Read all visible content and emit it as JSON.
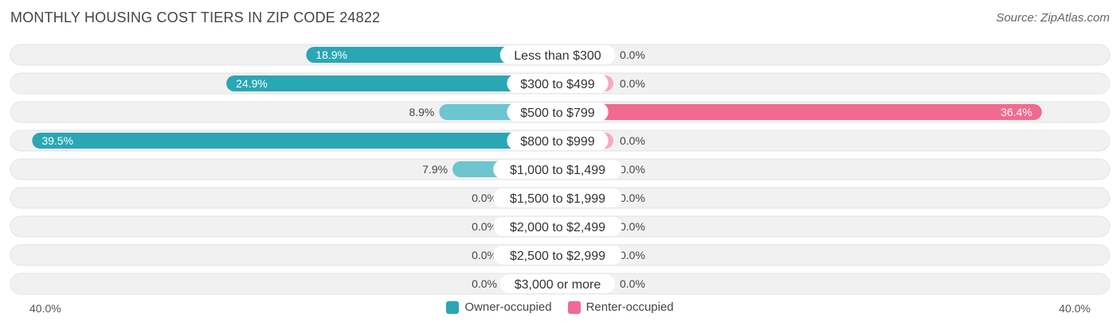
{
  "header": {
    "title": "MONTHLY HOUSING COST TIERS IN ZIP CODE 24822",
    "source": "Source: ZipAtlas.com"
  },
  "axis": {
    "left_label": "40.0%",
    "right_label": "40.0%"
  },
  "legend": {
    "owner_label": "Owner-occupied",
    "renter_label": "Renter-occupied"
  },
  "colors": {
    "owner": "#6cc5cf",
    "owner_strong": "#2aa6b4",
    "renter": "#f6a9c1",
    "renter_strong": "#f06a93",
    "row_bg": "#f1f1f1"
  },
  "chart_data": {
    "type": "bar",
    "orientation": "diverging-horizontal",
    "title": "MONTHLY HOUSING COST TIERS IN ZIP CODE 24822",
    "xlim": [
      -40,
      40
    ],
    "categories": [
      "Less than $300",
      "$300 to $499",
      "$500 to $799",
      "$800 to $999",
      "$1,000 to $1,499",
      "$1,500 to $1,999",
      "$2,000 to $2,499",
      "$2,500 to $2,999",
      "$3,000 or more"
    ],
    "series": [
      {
        "name": "Owner-occupied",
        "values": [
          18.9,
          24.9,
          8.9,
          39.5,
          7.9,
          0.0,
          0.0,
          0.0,
          0.0
        ],
        "labels": [
          "18.9%",
          "24.9%",
          "8.9%",
          "39.5%",
          "7.9%",
          "0.0%",
          "0.0%",
          "0.0%",
          "0.0%"
        ]
      },
      {
        "name": "Renter-occupied",
        "values": [
          0.0,
          0.0,
          36.4,
          0.0,
          0.0,
          0.0,
          0.0,
          0.0,
          0.0
        ],
        "labels": [
          "0.0%",
          "0.0%",
          "36.4%",
          "0.0%",
          "0.0%",
          "0.0%",
          "0.0%",
          "0.0%",
          "0.0%"
        ]
      }
    ],
    "legend_position": "bottom-center"
  }
}
